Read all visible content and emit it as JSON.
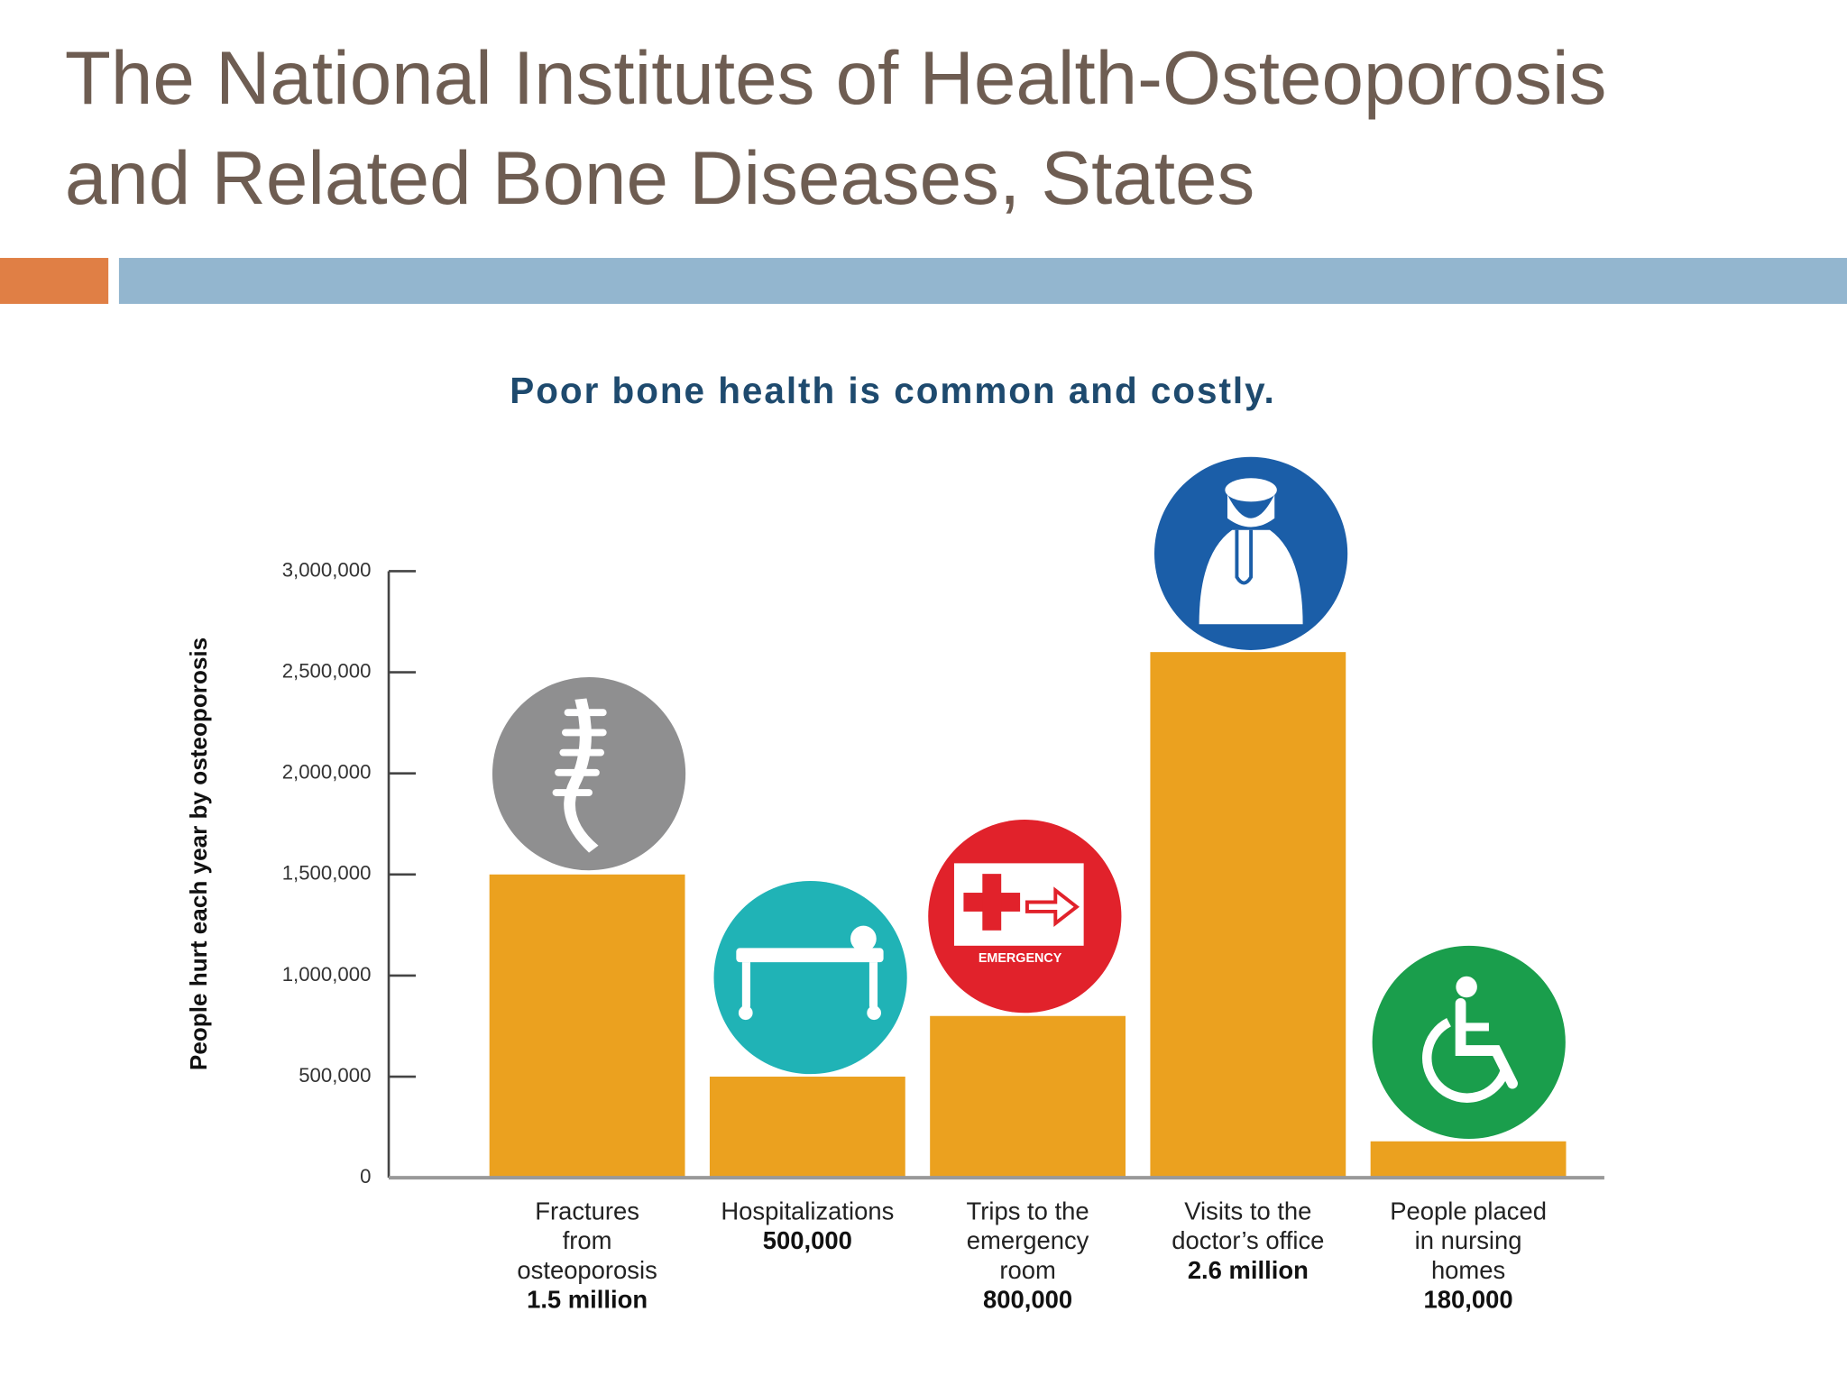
{
  "slide": {
    "title": [
      "The National Institutes of Health-Osteoporosis",
      "and Related Bone Diseases, States"
    ]
  },
  "emergency_icon_label": "EMERGENCY",
  "chart_data": {
    "type": "bar",
    "title": "Poor bone health is common and costly.",
    "y_label": "People hurt each year by osteoporosis",
    "categories": [
      [
        "Fractures",
        "from",
        "osteoporosis"
      ],
      [
        "Hospitalizations"
      ],
      [
        "Trips to the",
        "emergency",
        "room"
      ],
      [
        "Visits to the",
        "doctor’s office"
      ],
      [
        "People placed",
        "in nursing",
        "homes"
      ]
    ],
    "values": [
      1500000,
      500000,
      800000,
      2600000,
      180000
    ],
    "value_labels": [
      "1.5 million",
      "500,000",
      "800,000",
      "2.6 million",
      "180,000"
    ],
    "color": "#eba11f",
    "ylim": [
      0,
      3000000
    ],
    "yticks": [
      0,
      {
        "value": 500000,
        "label": "500,000"
      },
      {
        "value": 1000000,
        "label": "1,000,000"
      },
      {
        "value": 1500000,
        "label": "1,500,000"
      },
      {
        "value": 2000000,
        "label": "2,000,000"
      },
      {
        "value": 2500000,
        "label": "2,500,000"
      },
      {
        "value": 3000000,
        "label": "3,000,000"
      }
    ],
    "grid": false
  }
}
